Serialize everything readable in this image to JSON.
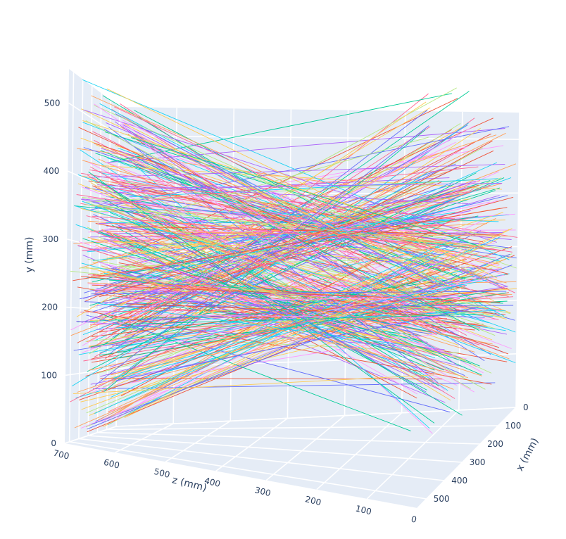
{
  "chart_data": {
    "type": "line3d",
    "xlabel": "x (mm)",
    "ylabel": "y (mm)",
    "zlabel": "z (mm)",
    "x_ticks": [
      0,
      100,
      200,
      300,
      400,
      500
    ],
    "y_ticks": [
      0,
      100,
      200,
      300,
      400,
      500
    ],
    "z_ticks": [
      0,
      100,
      200,
      300,
      400,
      500,
      600,
      700
    ],
    "xlim": [
      0,
      550
    ],
    "ylim": [
      0,
      550
    ],
    "zlim": [
      0,
      700
    ],
    "grid": true,
    "legend": "none",
    "line_count": 420,
    "convergence_points_y": [
      205,
      330
    ],
    "colors": [
      "#636efa",
      "#EF553B",
      "#00cc96",
      "#ab63fa",
      "#FFA15A",
      "#19d3f3",
      "#FF6692",
      "#B6E880",
      "#FF97FF",
      "#FECB52"
    ],
    "pane_color": "#e5ecf6",
    "grid_color": "#ffffff"
  }
}
